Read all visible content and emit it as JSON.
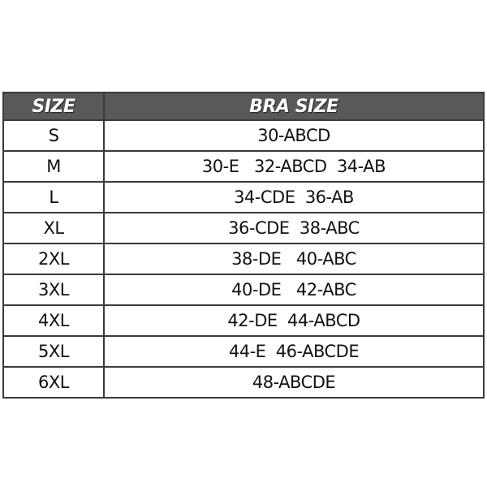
{
  "header": {
    "size": "SIZE",
    "bra_size": "BRA SIZE"
  },
  "rows": [
    {
      "size": "S",
      "bra": "30-ABCD"
    },
    {
      "size": "M",
      "bra": "30-E   32-ABCD  34-AB"
    },
    {
      "size": "L",
      "bra": "34-CDE  36-AB"
    },
    {
      "size": "XL",
      "bra": "36-CDE  38-ABC"
    },
    {
      "size": "2XL",
      "bra": "38-DE   40-ABC"
    },
    {
      "size": "3XL",
      "bra": "40-DE   42-ABC"
    },
    {
      "size": "4XL",
      "bra": "42-DE  44-ABCD"
    },
    {
      "size": "5XL",
      "bra": "44-E  46-ABCDE"
    },
    {
      "size": "6XL",
      "bra": "48-ABCDE"
    }
  ],
  "colors": {
    "header_bg": "#595959",
    "border": "#3a3a3a"
  }
}
